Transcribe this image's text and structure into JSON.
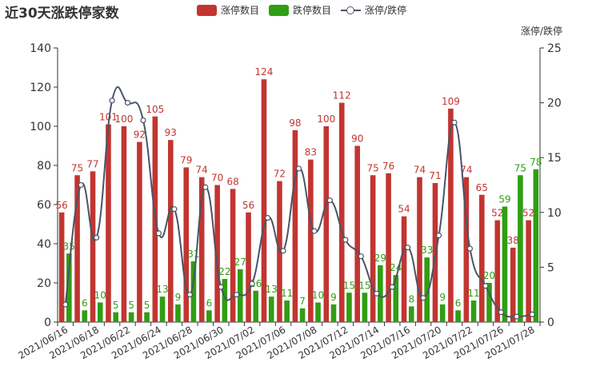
{
  "title": "近30天涨跌停家数",
  "legend": [
    {
      "label": "涨停数目",
      "color": "#c23531",
      "kind": "bar"
    },
    {
      "label": "跌停数目",
      "color": "#2f9e12",
      "kind": "bar"
    },
    {
      "label": "涨停/跌停",
      "color": "#4a5468",
      "kind": "line"
    }
  ],
  "chart_data": {
    "type": "bar",
    "title": "近30天涨跌停家数",
    "categories": [
      "2021/06/16",
      "2021/06/17",
      "2021/06/18",
      "2021/06/21",
      "2021/06/22",
      "2021/06/23",
      "2021/06/24",
      "2021/06/25",
      "2021/06/28",
      "2021/06/29",
      "2021/06/30",
      "2021/07/01",
      "2021/07/02",
      "2021/07/05",
      "2021/07/06",
      "2021/07/07",
      "2021/07/08",
      "2021/07/09",
      "2021/07/12",
      "2021/07/13",
      "2021/07/14",
      "2021/07/15",
      "2021/07/16",
      "2021/07/19",
      "2021/07/20",
      "2021/07/21",
      "2021/07/22",
      "2021/07/23",
      "2021/07/26",
      "2021/07/27",
      "2021/07/28"
    ],
    "x_tick_labels": [
      "2021/06/16",
      "2021/06/18",
      "2021/06/22",
      "2021/06/24",
      "2021/06/28",
      "2021/06/30",
      "2021/07/02",
      "2021/07/06",
      "2021/07/08",
      "2021/07/12",
      "2021/07/14",
      "2021/07/16",
      "2021/07/20",
      "2021/07/22",
      "2021/07/26",
      "2021/07/28"
    ],
    "series": [
      {
        "name": "涨停数目",
        "type": "bar",
        "color": "#c23531",
        "values": [
          56,
          75,
          77,
          101,
          100,
          92,
          105,
          93,
          79,
          74,
          70,
          68,
          56,
          124,
          72,
          98,
          83,
          100,
          112,
          90,
          75,
          76,
          54,
          74,
          71,
          109,
          74,
          65,
          52,
          38,
          52
        ]
      },
      {
        "name": "跌停数目",
        "type": "bar",
        "color": "#2f9e12",
        "values": [
          35,
          6,
          10,
          5,
          5,
          5,
          13,
          9,
          31,
          6,
          22,
          27,
          16,
          13,
          11,
          7,
          10,
          9,
          15,
          15,
          29,
          24,
          8,
          33,
          9,
          6,
          11,
          20,
          59,
          75,
          78
        ]
      },
      {
        "name": "涨停/跌停",
        "type": "line",
        "color": "#4a5468",
        "axis": "right",
        "values": [
          1.6,
          12.5,
          7.7,
          20.2,
          20.0,
          18.4,
          8.1,
          10.3,
          2.5,
          12.3,
          3.2,
          2.5,
          3.5,
          9.5,
          6.5,
          14.0,
          8.3,
          11.1,
          7.5,
          6.0,
          2.6,
          3.2,
          6.8,
          2.2,
          7.9,
          18.2,
          6.7,
          3.3,
          0.9,
          0.5,
          0.7
        ]
      }
    ],
    "y_left": {
      "min": 0,
      "max": 140,
      "ticks": [
        0,
        20,
        40,
        60,
        80,
        100,
        120,
        140
      ]
    },
    "y_right": {
      "label": "涨停/跌停",
      "min": 0,
      "max": 25,
      "ticks": [
        0,
        5,
        10,
        15,
        20,
        25
      ]
    },
    "grid": false,
    "legend_position": "top"
  }
}
